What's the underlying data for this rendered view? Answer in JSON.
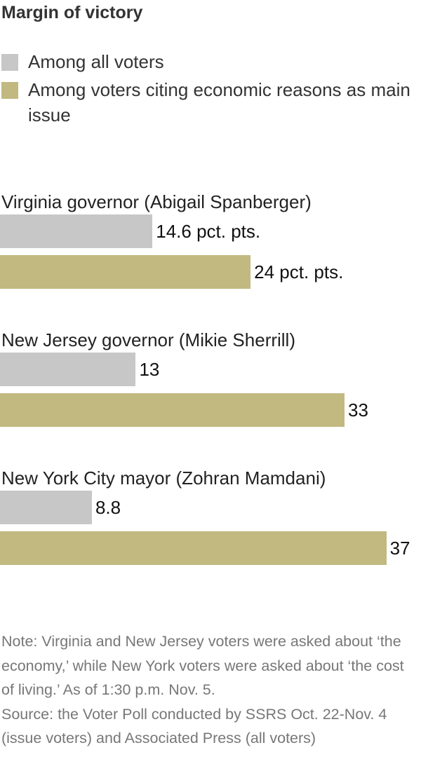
{
  "chart_data": {
    "type": "bar",
    "orientation": "horizontal",
    "title": "Margin of victory",
    "xlabel": "",
    "ylabel": "",
    "xlim": [
      0,
      37.7
    ],
    "categories": [
      "Virginia governor (Abigail Spanberger)",
      "New Jersey governor (Mikie Sherrill)",
      "New York City mayor (Zohran Mamdani)"
    ],
    "series": [
      {
        "name": "Among all voters",
        "color": "#c7c7c7",
        "values": [
          14.6,
          13,
          8.8
        ],
        "labels": [
          "14.6 pct. pts.",
          "13",
          "8.8"
        ]
      },
      {
        "name": "Among voters citing economic reasons as main issue",
        "color": "#c1b97f",
        "values": [
          24,
          33,
          37
        ],
        "labels": [
          "24 pct. pts.",
          "33",
          "37"
        ]
      }
    ],
    "legend": "top-left",
    "grid": false
  },
  "footnote": {
    "note": "Note: Virginia and New Jersey voters were asked about ‘the economy,’ while New York voters were asked about ‘the cost of living.’ As of 1:30 p.m. Nov. 5.",
    "source": "Source: the Voter Poll conducted by SSRS Oct. 22-Nov. 4 (issue voters) and Associated Press (all voters)"
  }
}
